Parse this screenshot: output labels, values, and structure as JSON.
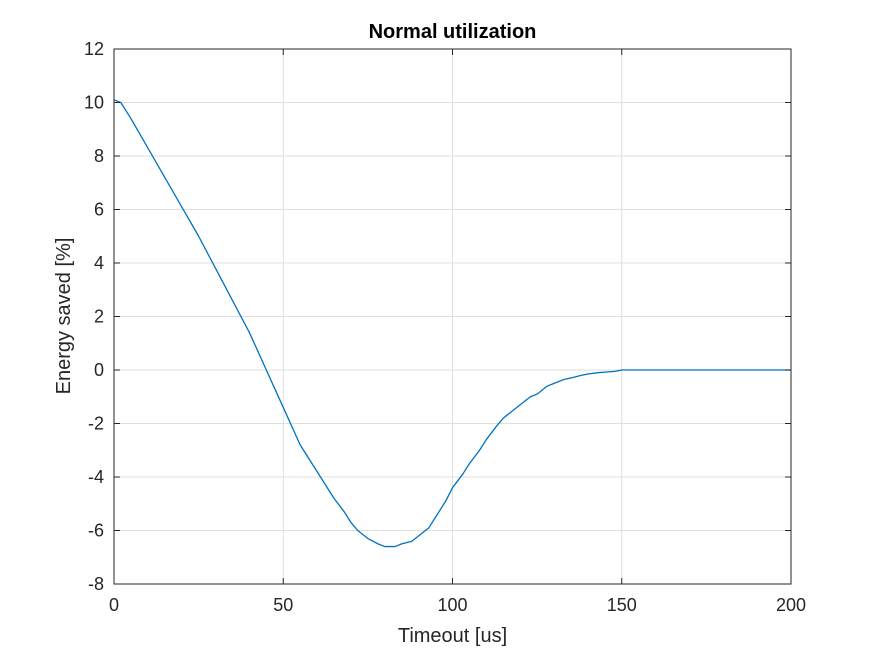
{
  "chart_data": {
    "type": "line",
    "title": "Normal utilization",
    "xlabel": "Timeout [us]",
    "ylabel": "Energy saved [%]",
    "xlim": [
      0,
      200
    ],
    "ylim": [
      -8,
      12
    ],
    "x_ticks": [
      0,
      50,
      100,
      150,
      200
    ],
    "y_ticks": [
      -8,
      -6,
      -4,
      -2,
      0,
      2,
      4,
      6,
      8,
      10,
      12
    ],
    "x_tick_labels": [
      "0",
      "50",
      "100",
      "150",
      "200"
    ],
    "y_tick_labels": [
      "-8",
      "-6",
      "-4",
      "-2",
      "0",
      "2",
      "4",
      "6",
      "8",
      "10",
      "12"
    ],
    "grid": true,
    "colors": {
      "series": "#0072BD",
      "grid": "#dfdfdf",
      "axis": "#262626"
    },
    "series": [
      {
        "x": [
          0,
          2,
          5,
          10,
          15,
          20,
          25,
          30,
          35,
          40,
          45,
          50,
          55,
          60,
          65,
          68,
          70,
          72,
          75,
          78,
          80,
          83,
          85,
          88,
          90,
          93,
          95,
          98,
          100,
          103,
          105,
          108,
          110,
          113,
          115,
          118,
          120,
          123,
          125,
          128,
          130,
          133,
          135,
          138,
          140,
          143,
          145,
          148,
          150,
          155,
          160,
          170,
          180,
          190,
          200
        ],
        "y": [
          10.1,
          10.0,
          9.4,
          8.3,
          7.2,
          6.1,
          5.0,
          3.8,
          2.6,
          1.4,
          0.0,
          -1.4,
          -2.8,
          -3.8,
          -4.8,
          -5.3,
          -5.7,
          -6.0,
          -6.3,
          -6.5,
          -6.6,
          -6.6,
          -6.5,
          -6.4,
          -6.2,
          -5.9,
          -5.5,
          -4.9,
          -4.4,
          -3.9,
          -3.5,
          -3.0,
          -2.6,
          -2.1,
          -1.8,
          -1.5,
          -1.3,
          -1.0,
          -0.9,
          -0.6,
          -0.5,
          -0.35,
          -0.3,
          -0.2,
          -0.15,
          -0.1,
          -0.08,
          -0.05,
          0.0,
          0.0,
          0.0,
          0.0,
          0.0,
          0.0,
          0.0
        ]
      }
    ]
  }
}
